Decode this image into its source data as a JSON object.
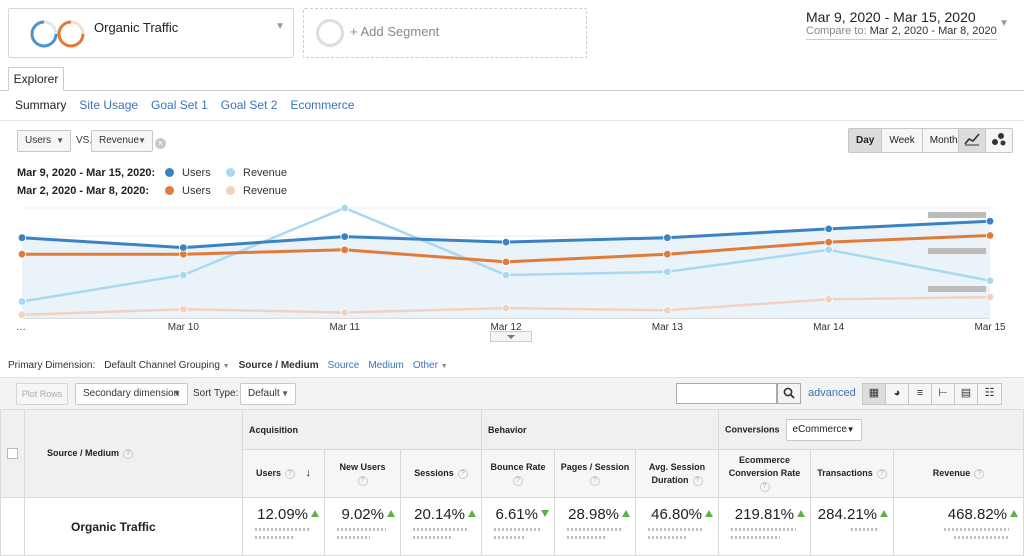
{
  "segments": {
    "primary": {
      "label": "Organic Traffic"
    },
    "add": {
      "label": "+ Add Segment"
    }
  },
  "date_range": {
    "main": "Mar 9, 2020 - Mar 15, 2020",
    "compare_prefix": "Compare to:",
    "compare_range": "Mar 2, 2020 - Mar 8, 2020"
  },
  "tabs": {
    "explorer": "Explorer"
  },
  "subtabs": [
    "Summary",
    "Site Usage",
    "Goal Set 1",
    "Goal Set 2",
    "Ecommerce"
  ],
  "metric_picker": {
    "metric1": "Users",
    "vs": "VS.",
    "metric2": "Revenue"
  },
  "granularity": {
    "day": "Day",
    "week": "Week",
    "month": "Month"
  },
  "legend": {
    "current_range": "Mar 9, 2020 - Mar 15, 2020:",
    "previous_range": "Mar 2, 2020 - Mar 8, 2020:",
    "users": "Users",
    "revenue": "Revenue"
  },
  "colors": {
    "users_current": "#3b82c4",
    "revenue_current": "#a9d8f2",
    "users_previous": "#e07b39",
    "revenue_previous": "#f2d1bd",
    "positive": "#5bb240",
    "link": "#3a73b9"
  },
  "chart_data": {
    "type": "line",
    "x": [
      "…",
      "Mar 10",
      "Mar 11",
      "Mar 12",
      "Mar 13",
      "Mar 14",
      "Mar 15"
    ],
    "series": [
      {
        "name": "Users",
        "period": "Mar 9, 2020 - Mar 15, 2020",
        "values": [
          0.73,
          0.64,
          0.74,
          0.69,
          0.73,
          0.81,
          0.88
        ]
      },
      {
        "name": "Revenue",
        "period": "Mar 9, 2020 - Mar 15, 2020",
        "values": [
          0.15,
          0.39,
          1.0,
          0.39,
          0.42,
          0.62,
          0.34
        ]
      },
      {
        "name": "Users",
        "period": "Mar 2, 2020 - Mar 8, 2020",
        "values": [
          0.58,
          0.58,
          0.62,
          0.51,
          0.58,
          0.69,
          0.75
        ]
      },
      {
        "name": "Revenue",
        "period": "Mar 2, 2020 - Mar 8, 2020",
        "values": [
          0.03,
          0.08,
          0.05,
          0.09,
          0.07,
          0.17,
          0.19
        ]
      }
    ],
    "xlabel": "",
    "ylabel": "",
    "grid": true,
    "legend_placement": "top-left"
  },
  "primary_dimension": {
    "label": "Primary Dimension:",
    "grouping": "Default Channel Grouping",
    "options": [
      "Source / Medium",
      "Source",
      "Medium",
      "Other"
    ]
  },
  "table_toolbar": {
    "plot_rows": "Plot Rows",
    "secondary_dimension": "Secondary dimension",
    "sort_type_label": "Sort Type:",
    "sort_type_value": "Default",
    "advanced": "advanced"
  },
  "table": {
    "dimension_header": "Source / Medium",
    "groups": {
      "acquisition": "Acquisition",
      "behavior": "Behavior",
      "conversions": "Conversions",
      "conversions_select": "eCommerce"
    },
    "columns": [
      "Users",
      "New Users",
      "Sessions",
      "Bounce Rate",
      "Pages / Session",
      "Avg. Session Duration",
      "Ecommerce Conversion Rate",
      "Transactions",
      "Revenue"
    ],
    "row": {
      "label": "Organic Traffic",
      "values": [
        "12.09%",
        "9.02%",
        "20.14%",
        "6.61%",
        "28.98%",
        "46.80%",
        "219.81%",
        "284.21%",
        "468.82%"
      ]
    }
  }
}
